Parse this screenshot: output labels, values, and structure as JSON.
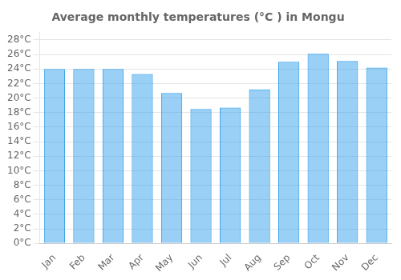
{
  "chart_data": {
    "type": "bar",
    "title": "Average monthly temperatures (°C ) in Mongu",
    "categories": [
      "Jan",
      "Feb",
      "Mar",
      "Apr",
      "May",
      "Jun",
      "Jul",
      "Aug",
      "Sep",
      "Oct",
      "Nov",
      "Dec"
    ],
    "values": [
      24.0,
      24.0,
      24.0,
      23.3,
      20.7,
      18.5,
      18.7,
      21.2,
      25.0,
      26.1,
      25.1,
      24.2
    ],
    "ylim": [
      0,
      29
    ],
    "yticks": [
      {
        "value": 0,
        "label": "0°C"
      },
      {
        "value": 2,
        "label": "2°C"
      },
      {
        "value": 4,
        "label": "4°C"
      },
      {
        "value": 6,
        "label": "6°C"
      },
      {
        "value": 8,
        "label": "8°C"
      },
      {
        "value": 10,
        "label": "10°C"
      },
      {
        "value": 12,
        "label": "12°C"
      },
      {
        "value": 14,
        "label": "14°C"
      },
      {
        "value": 16,
        "label": "16°C"
      },
      {
        "value": 18,
        "label": "18°C"
      },
      {
        "value": 20,
        "label": "20°C"
      },
      {
        "value": 22,
        "label": "22°C"
      },
      {
        "value": 24,
        "label": "24°C"
      },
      {
        "value": 26,
        "label": "26°C"
      },
      {
        "value": 28,
        "label": "28°C"
      }
    ],
    "grid": true
  }
}
